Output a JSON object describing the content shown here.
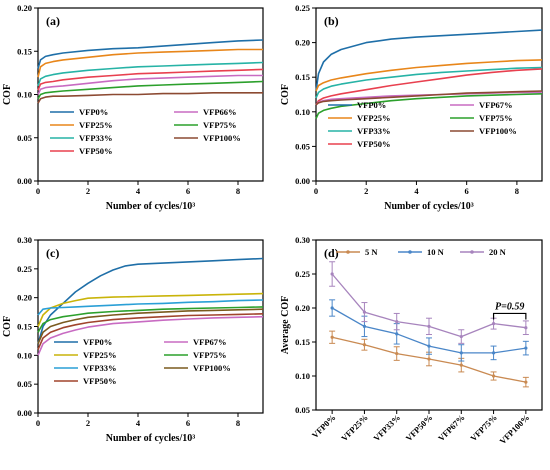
{
  "chart_data": [
    {
      "id": "a",
      "panel_label": "(a)",
      "type": "line",
      "xlabel": "Number of cycles/10³",
      "ylabel": "COF",
      "xlim": [
        0,
        9
      ],
      "ylim": [
        0,
        0.2
      ],
      "xticks": [
        0,
        2,
        4,
        6,
        8
      ],
      "xtick_labels": [
        "0",
        "2",
        "4",
        "6",
        "8"
      ],
      "yticks": [
        0,
        0.05,
        0.1,
        0.15,
        0.2
      ],
      "ytick_labels": [
        "0.00",
        "0.05",
        "0.10",
        "0.15",
        "0.20"
      ],
      "legend_columns": 2,
      "series": [
        {
          "name": "VFP0%",
          "color": "#1f6fa8",
          "x": [
            0,
            0.1,
            0.3,
            0.6,
            1,
            2,
            3,
            4,
            5,
            6,
            7,
            8,
            9
          ],
          "y": [
            0.13,
            0.14,
            0.144,
            0.146,
            0.148,
            0.151,
            0.153,
            0.154,
            0.156,
            0.158,
            0.16,
            0.162,
            0.163
          ]
        },
        {
          "name": "VFP25%",
          "color": "#e8861a",
          "x": [
            0,
            0.1,
            0.3,
            0.6,
            1,
            2,
            3,
            4,
            5,
            6,
            7,
            8,
            9
          ],
          "y": [
            0.12,
            0.132,
            0.136,
            0.138,
            0.14,
            0.143,
            0.146,
            0.148,
            0.149,
            0.15,
            0.151,
            0.152,
            0.152
          ]
        },
        {
          "name": "VFP33%",
          "color": "#27b3a6",
          "x": [
            0,
            0.1,
            0.3,
            0.6,
            1,
            2,
            3,
            4,
            5,
            6,
            7,
            8,
            9
          ],
          "y": [
            0.11,
            0.118,
            0.121,
            0.123,
            0.125,
            0.128,
            0.13,
            0.132,
            0.133,
            0.134,
            0.135,
            0.136,
            0.137
          ]
        },
        {
          "name": "VFP50%",
          "color": "#e8404f",
          "x": [
            0,
            0.1,
            0.3,
            0.6,
            1,
            2,
            3,
            4,
            5,
            6,
            7,
            8,
            9
          ],
          "y": [
            0.105,
            0.112,
            0.114,
            0.115,
            0.117,
            0.12,
            0.122,
            0.124,
            0.125,
            0.126,
            0.127,
            0.128,
            0.129
          ]
        },
        {
          "name": "VFP66%",
          "color": "#c86bc2",
          "x": [
            0,
            0.1,
            0.3,
            0.6,
            1,
            2,
            3,
            4,
            5,
            6,
            7,
            8,
            9
          ],
          "y": [
            0.1,
            0.106,
            0.108,
            0.109,
            0.11,
            0.113,
            0.116,
            0.118,
            0.119,
            0.12,
            0.121,
            0.122,
            0.122
          ]
        },
        {
          "name": "VFP75%",
          "color": "#2ca02c",
          "x": [
            0,
            0.1,
            0.3,
            0.6,
            1,
            2,
            3,
            4,
            5,
            6,
            7,
            8,
            9
          ],
          "y": [
            0.095,
            0.1,
            0.102,
            0.103,
            0.104,
            0.106,
            0.108,
            0.11,
            0.111,
            0.112,
            0.113,
            0.114,
            0.115
          ]
        },
        {
          "name": "VFP100%",
          "color": "#8c4a32",
          "x": [
            0,
            0.1,
            0.3,
            0.6,
            1,
            2,
            3,
            4,
            5,
            6,
            7,
            8,
            9
          ],
          "y": [
            0.09,
            0.095,
            0.097,
            0.098,
            0.098,
            0.099,
            0.1,
            0.1,
            0.101,
            0.101,
            0.102,
            0.102,
            0.102
          ]
        }
      ]
    },
    {
      "id": "b",
      "panel_label": "(b)",
      "type": "line",
      "xlabel": "Number of cycles/10³",
      "ylabel": "COF",
      "xlim": [
        0,
        9
      ],
      "ylim": [
        0,
        0.25
      ],
      "xticks": [
        0,
        2,
        4,
        6,
        8
      ],
      "xtick_labels": [
        "0",
        "2",
        "4",
        "6",
        "8"
      ],
      "yticks": [
        0,
        0.05,
        0.1,
        0.15,
        0.2,
        0.25
      ],
      "ytick_labels": [
        "0.00",
        "0.05",
        "0.10",
        "0.15",
        "0.20",
        "0.25"
      ],
      "legend_columns": 2,
      "series": [
        {
          "name": "VFP0%",
          "color": "#1f6fa8",
          "x": [
            0,
            0.1,
            0.3,
            0.6,
            1,
            2,
            3,
            4,
            5,
            6,
            7,
            8,
            9
          ],
          "y": [
            0.13,
            0.155,
            0.172,
            0.183,
            0.19,
            0.2,
            0.205,
            0.208,
            0.21,
            0.212,
            0.214,
            0.216,
            0.218
          ]
        },
        {
          "name": "VFP25%",
          "color": "#e8861a",
          "x": [
            0,
            0.1,
            0.3,
            0.6,
            1,
            2,
            3,
            4,
            5,
            6,
            7,
            8,
            9
          ],
          "y": [
            0.13,
            0.138,
            0.142,
            0.146,
            0.149,
            0.155,
            0.16,
            0.164,
            0.167,
            0.17,
            0.172,
            0.174,
            0.175
          ]
        },
        {
          "name": "VFP33%",
          "color": "#27b3a6",
          "x": [
            0,
            0.1,
            0.3,
            0.6,
            1,
            2,
            3,
            4,
            5,
            6,
            7,
            8,
            9
          ],
          "y": [
            0.12,
            0.128,
            0.133,
            0.137,
            0.14,
            0.146,
            0.15,
            0.154,
            0.157,
            0.159,
            0.161,
            0.163,
            0.164
          ]
        },
        {
          "name": "VFP50%",
          "color": "#e8404f",
          "x": [
            0,
            0.1,
            0.3,
            0.6,
            1,
            2,
            3,
            4,
            5,
            6,
            7,
            8,
            9
          ],
          "y": [
            0.11,
            0.116,
            0.12,
            0.123,
            0.126,
            0.132,
            0.138,
            0.143,
            0.148,
            0.153,
            0.157,
            0.16,
            0.162
          ]
        },
        {
          "name": "VFP67%",
          "color": "#c86bc2",
          "x": [
            0,
            0.1,
            0.3,
            0.6,
            1,
            2,
            3,
            4,
            5,
            6,
            7,
            8,
            9
          ],
          "y": [
            0.11,
            0.114,
            0.116,
            0.118,
            0.119,
            0.121,
            0.123,
            0.124,
            0.125,
            0.126,
            0.127,
            0.128,
            0.128
          ]
        },
        {
          "name": "VFP75%",
          "color": "#2ca02c",
          "x": [
            0,
            0.1,
            0.3,
            0.6,
            1,
            2,
            3,
            4,
            5,
            6,
            7,
            8,
            9
          ],
          "y": [
            0.09,
            0.098,
            0.102,
            0.105,
            0.108,
            0.112,
            0.116,
            0.119,
            0.121,
            0.123,
            0.124,
            0.125,
            0.126
          ]
        },
        {
          "name": "VFP100%",
          "color": "#8c4a32",
          "x": [
            0,
            0.1,
            0.3,
            0.6,
            1,
            2,
            3,
            4,
            5,
            6,
            7,
            8,
            9
          ],
          "y": [
            0.11,
            0.113,
            0.115,
            0.116,
            0.117,
            0.119,
            0.121,
            0.123,
            0.125,
            0.127,
            0.128,
            0.129,
            0.13
          ]
        }
      ]
    },
    {
      "id": "c",
      "panel_label": "(c)",
      "type": "line",
      "xlabel": "Number of cycles/10³",
      "ylabel": "COF",
      "xlim": [
        0,
        9
      ],
      "ylim": [
        0,
        0.3
      ],
      "xticks": [
        0,
        2,
        4,
        6,
        8
      ],
      "xtick_labels": [
        "0",
        "2",
        "4",
        "6",
        "8"
      ],
      "yticks": [
        0,
        0.05,
        0.1,
        0.15,
        0.2,
        0.25,
        0.3
      ],
      "ytick_labels": [
        "0.00",
        "0.05",
        "0.10",
        "0.15",
        "0.20",
        "0.25",
        "0.30"
      ],
      "legend_columns": 2,
      "series": [
        {
          "name": "VFP0%",
          "color": "#1f6fa8",
          "x": [
            0,
            0.2,
            0.5,
            1,
            1.5,
            2,
            2.5,
            3,
            3.5,
            4,
            5,
            6,
            7,
            8,
            9
          ],
          "y": [
            0.12,
            0.15,
            0.17,
            0.19,
            0.21,
            0.225,
            0.238,
            0.248,
            0.255,
            0.258,
            0.26,
            0.262,
            0.264,
            0.266,
            0.268
          ]
        },
        {
          "name": "VFP25%",
          "color": "#c9b40a",
          "x": [
            0,
            0.2,
            0.5,
            1,
            1.5,
            2,
            3,
            4,
            5,
            6,
            7,
            8,
            9
          ],
          "y": [
            0.15,
            0.17,
            0.182,
            0.19,
            0.195,
            0.199,
            0.201,
            0.202,
            0.203,
            0.204,
            0.205,
            0.206,
            0.207
          ]
        },
        {
          "name": "VFP33%",
          "color": "#2a9fd6",
          "x": [
            0,
            0.2,
            0.5,
            1,
            1.5,
            2,
            3,
            4,
            5,
            6,
            7,
            8,
            9
          ],
          "y": [
            0.17,
            0.18,
            0.182,
            0.183,
            0.184,
            0.185,
            0.187,
            0.189,
            0.19,
            0.192,
            0.193,
            0.195,
            0.196
          ]
        },
        {
          "name": "VFP50%",
          "color": "#a0442c",
          "x": [
            0,
            0.2,
            0.5,
            1,
            1.5,
            2,
            3,
            4,
            5,
            6,
            7,
            8,
            9
          ],
          "y": [
            0.11,
            0.13,
            0.14,
            0.148,
            0.153,
            0.157,
            0.162,
            0.165,
            0.167,
            0.169,
            0.17,
            0.171,
            0.172
          ]
        },
        {
          "name": "VFP67%",
          "color": "#c86bc2",
          "x": [
            0,
            0.2,
            0.5,
            1,
            1.5,
            2,
            3,
            4,
            5,
            6,
            7,
            8,
            9
          ],
          "y": [
            0.1,
            0.12,
            0.13,
            0.138,
            0.144,
            0.149,
            0.155,
            0.158,
            0.161,
            0.163,
            0.165,
            0.166,
            0.167
          ]
        },
        {
          "name": "VFP75%",
          "color": "#2ca02c",
          "x": [
            0,
            0.2,
            0.5,
            1,
            1.5,
            2,
            3,
            4,
            5,
            6,
            7,
            8,
            9
          ],
          "y": [
            0.14,
            0.155,
            0.162,
            0.167,
            0.17,
            0.173,
            0.176,
            0.178,
            0.18,
            0.181,
            0.182,
            0.183,
            0.184
          ]
        },
        {
          "name": "VFP100%",
          "color": "#7a5a1e",
          "x": [
            0,
            0.2,
            0.5,
            1,
            1.5,
            2,
            3,
            4,
            5,
            6,
            7,
            8,
            9
          ],
          "y": [
            0.12,
            0.14,
            0.15,
            0.157,
            0.162,
            0.166,
            0.17,
            0.173,
            0.175,
            0.177,
            0.178,
            0.179,
            0.18
          ]
        }
      ]
    },
    {
      "id": "d",
      "panel_label": "(d)",
      "type": "line",
      "xlabel": "",
      "ylabel": "Average COF",
      "ylim": [
        0.05,
        0.3
      ],
      "yticks": [
        0.05,
        0.1,
        0.15,
        0.2,
        0.25,
        0.3
      ],
      "ytick_labels": [
        "0.05",
        "0.10",
        "0.15",
        "0.20",
        "0.25",
        "0.30"
      ],
      "categories": [
        "VFP0%",
        "VFP25%",
        "VFP33%",
        "VFP50%",
        "VFP67%",
        "VFP75%",
        "VFP100%"
      ],
      "legend_columns": 3,
      "series": [
        {
          "name": "5 N",
          "color": "#c98a52",
          "values": [
            0.157,
            0.146,
            0.133,
            0.125,
            0.116,
            0.1,
            0.091
          ],
          "errors": [
            0.009,
            0.008,
            0.01,
            0.01,
            0.01,
            0.006,
            0.007
          ]
        },
        {
          "name": "10 N",
          "color": "#4a86c8",
          "values": [
            0.2,
            0.173,
            0.162,
            0.144,
            0.134,
            0.134,
            0.141
          ],
          "errors": [
            0.012,
            0.015,
            0.015,
            0.012,
            0.012,
            0.01,
            0.01
          ]
        },
        {
          "name": "20 N",
          "color": "#a784bd",
          "values": [
            0.25,
            0.194,
            0.18,
            0.173,
            0.158,
            0.177,
            0.171
          ],
          "errors": [
            0.018,
            0.014,
            0.012,
            0.012,
            0.01,
            0.008,
            0.01
          ]
        }
      ],
      "annotation": {
        "label": "P=0.59",
        "from_category": "VFP75%",
        "to_category": "VFP100%",
        "y": 0.192
      }
    }
  ]
}
